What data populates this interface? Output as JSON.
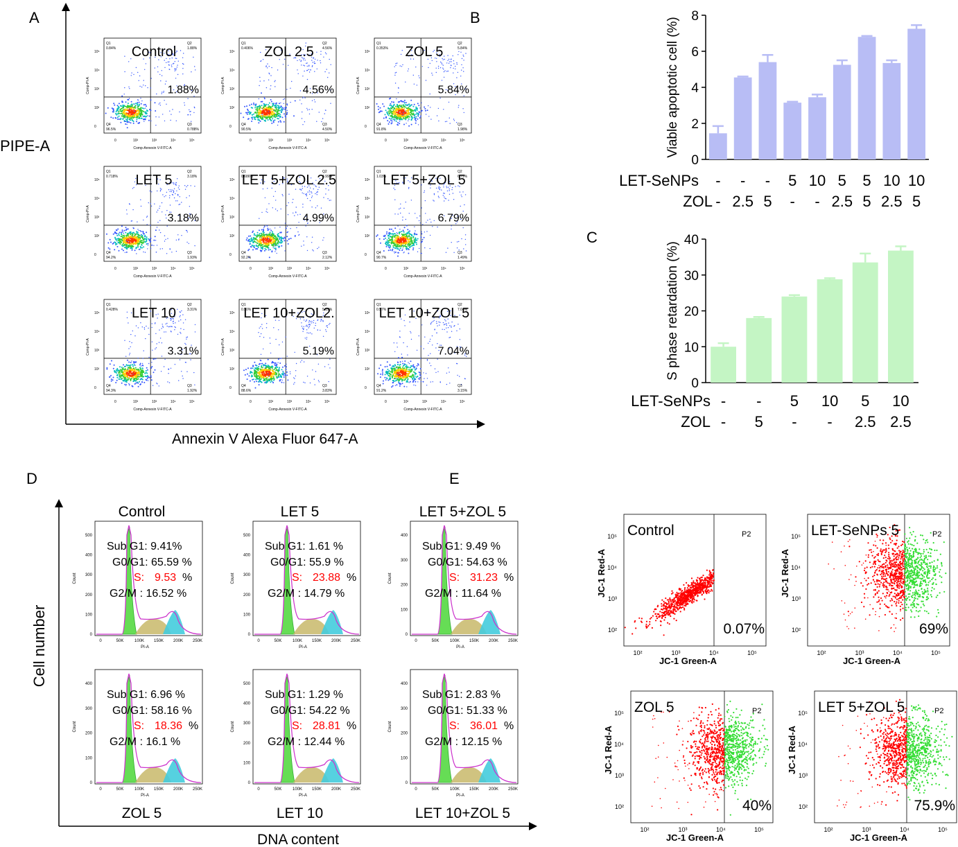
{
  "panel_letters": [
    "A",
    "B",
    "C",
    "D",
    "E"
  ],
  "panelA": {
    "y_label": "PIPE-A",
    "x_label": "Annexin V Alexa Fluor 647-A",
    "axis_small": {
      "y": "Comp-PI-A",
      "x": "Comp-Annexin V-FITC-A"
    },
    "plots": [
      {
        "name": "Control",
        "q1": "0.84%",
        "q2": "1.88%",
        "q3": "0.788%",
        "q4": "96.5%",
        "big": "1.88%"
      },
      {
        "name": "ZOL 2.5",
        "q1": "0.406%",
        "q2": "4.56%",
        "q3": "4.50%",
        "q4": "90.5%",
        "big": "4.56%"
      },
      {
        "name": "ZOL 5",
        "q1": "0.353%",
        "q2": "5.84%",
        "q3": "1.98%",
        "q4": "91.8%",
        "big": "5.84%"
      },
      {
        "name": "LET 5",
        "q1": "0.718%",
        "q2": "3.18%",
        "q3": "1.93%",
        "q4": "94.2%",
        "big": "3.18%"
      },
      {
        "name": "LET 5+ZOL 2.5",
        "q1": "0.686%",
        "q2": "4.99%",
        "q3": "2.12%",
        "q4": "92.2%",
        "big": "4.99%"
      },
      {
        "name": "LET 5+ZOL 5",
        "q1": "1.03%",
        "q2": "6.79%",
        "q3": "1.49%",
        "q4": "90.7%",
        "big": "6.79%"
      },
      {
        "name": "LET 10",
        "q1": "0.428%",
        "q2": "3.31%",
        "q3": "1.92%",
        "q4": "94.3%",
        "big": "3.31%"
      },
      {
        "name": "LET 10+ZOL2.",
        "q1": "0.50%",
        "q2": "5.19%",
        "q3": "3.83%",
        "q4": "88.6%",
        "big": "5.19%"
      },
      {
        "name": "LET 10+ZOL 5",
        "q1": "0.57%",
        "q2": "7.04%",
        "q3": "3.15%",
        "q4": "91.2%",
        "big": "7.04%"
      }
    ]
  },
  "chart_data": [
    {
      "type": "bar",
      "panel": "B",
      "ylabel": "Viable apoptotic cell (%)",
      "ylim": [
        0,
        8
      ],
      "yticks": [
        0,
        2,
        4,
        6,
        8
      ],
      "values": [
        1.45,
        4.55,
        5.4,
        3.15,
        3.45,
        5.25,
        6.8,
        5.35,
        7.25
      ],
      "errors": [
        0.4,
        0.05,
        0.4,
        0.05,
        0.15,
        0.25,
        0.05,
        0.15,
        0.2
      ],
      "row_labels": [
        "LET-SeNPs",
        "ZOL"
      ],
      "row1": [
        "-",
        "-",
        "-",
        "5",
        "10",
        "5",
        "5",
        "10",
        "10"
      ],
      "row2": [
        "-",
        "2.5",
        "5",
        "-",
        "-",
        "2.5",
        "5",
        "2.5",
        "5"
      ],
      "color": "#b8bdf5"
    },
    {
      "type": "bar",
      "panel": "C",
      "ylabel": "S phase retardation (%)",
      "ylim": [
        0,
        40
      ],
      "yticks": [
        0,
        10,
        20,
        30,
        40
      ],
      "values": [
        10,
        18,
        24,
        28.8,
        33.5,
        36.8
      ],
      "errors": [
        1,
        0.3,
        0.4,
        0.3,
        2.5,
        1.2
      ],
      "row_labels": [
        "LET-SeNPs",
        "ZOL"
      ],
      "row1": [
        "-",
        "-",
        "5",
        "10",
        "5",
        "10"
      ],
      "row2": [
        "-",
        "5",
        "-",
        "-",
        "2.5",
        "2.5"
      ],
      "color": "#c4f5c4"
    }
  ],
  "panelD": {
    "y_label": "Cell number",
    "x_label": "DNA content",
    "hist_axis": {
      "y": "Count",
      "x": "PI-A",
      "xticks": [
        "0",
        "50K",
        "100K",
        "150K",
        "200K",
        "250K"
      ]
    },
    "top_titles": [
      "Control",
      "LET 5",
      "LET 5+ZOL 5"
    ],
    "bottom_titles": [
      "ZOL 5",
      "LET 10",
      "LET 10+ZOL 5"
    ],
    "cells": [
      {
        "sub": "Sub G1: 9.41%",
        "g0": "G0/G1: 65.59 %",
        "s_label": "S:",
        "s_val": "9.53",
        "g2": "G2/M :  16.52 %",
        "ymax": "500",
        "yt": [
          "0",
          "100",
          "200",
          "300",
          "400",
          "500"
        ]
      },
      {
        "sub": "Sub G1: 1.61 %",
        "g0": "G0/G1: 55.9 %",
        "s_label": "S:",
        "s_val": "23.88",
        "g2": "G2/M :  14.79 %",
        "ymax": "500",
        "yt": [
          "0",
          "100",
          "200",
          "300",
          "400",
          "500"
        ]
      },
      {
        "sub": "Sub G1: 9.49 %",
        "g0": "G0/G1: 54.63 %",
        "s_label": "S:",
        "s_val": "31.23",
        "g2": "G2/M :  11.64 %",
        "ymax": "400",
        "yt": [
          "0",
          "100",
          "200",
          "300",
          "400"
        ]
      },
      {
        "sub": "Sub G1: 6.96 %",
        "g0": "G0/G1: 58.16 %",
        "s_label": "S:",
        "s_val": "18.36",
        "g2": "G2/M :  16.1 %",
        "ymax": "400",
        "yt": [
          "0",
          "100",
          "200",
          "300",
          "400"
        ]
      },
      {
        "sub": "Sub G1: 1.29 %",
        "g0": "G0/G1: 54.22 %",
        "s_label": "S:",
        "s_val": "28.81",
        "g2": "G2/M :  12.44 %",
        "ymax": "500",
        "yt": [
          "0",
          "100",
          "200",
          "300",
          "400",
          "500"
        ]
      },
      {
        "sub": "Sub G1: 2.83 %",
        "g0": "G0/G1: 51.33 %",
        "s_label": "S:",
        "s_val": "36.01",
        "g2": "G2/M :  12.15 %",
        "ymax": "400",
        "yt": [
          "0",
          "100",
          "200",
          "300",
          "400"
        ]
      }
    ],
    "pct": "%"
  },
  "panelE": {
    "axis_y": "JC-1 Red-A",
    "axis_x": "JC-1 Green-A",
    "gate": "P2",
    "plots": [
      {
        "name": "Control",
        "pct": "0.07%"
      },
      {
        "name": "LET-SeNPs  5",
        "pct": "69%"
      },
      {
        "name": "ZOL 5",
        "pct": "40%"
      },
      {
        "name": "LET 5+ZOL 5",
        "pct": "75.9%"
      }
    ]
  },
  "colors": {
    "red": "#ff0000",
    "green": "#33dd33",
    "blue": "#3355ff",
    "histo": "#66dd55"
  }
}
